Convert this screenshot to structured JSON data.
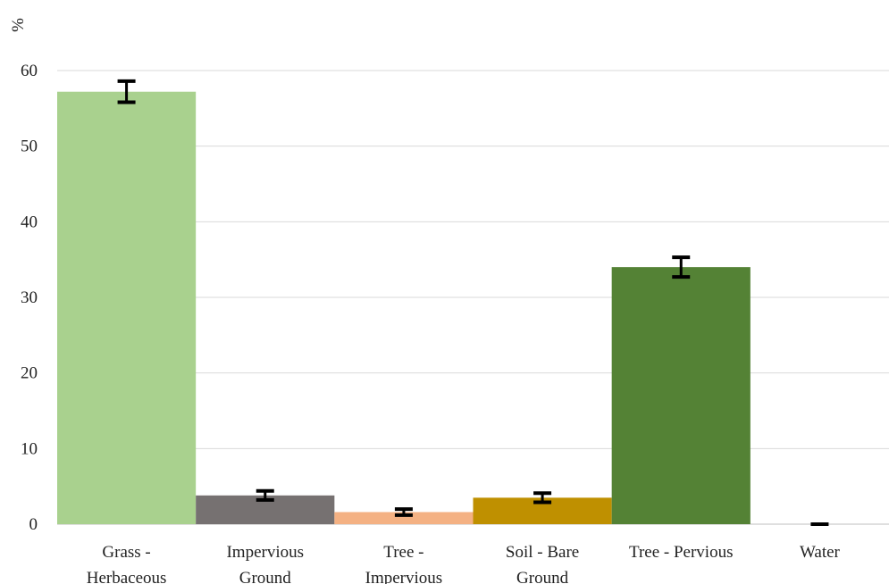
{
  "chart_data": {
    "type": "bar",
    "ylabel": "%",
    "ylim": [
      0,
      60
    ],
    "yticks": [
      0,
      10,
      20,
      30,
      40,
      50,
      60
    ],
    "grid": true,
    "categories": [
      [
        "Grass -",
        "Herbaceous"
      ],
      [
        "Impervious",
        "Ground"
      ],
      [
        "Tree -",
        "Impervious"
      ],
      [
        "Soil - Bare",
        "Ground"
      ],
      [
        "Tree - Pervious"
      ],
      [
        "Water"
      ]
    ],
    "values": [
      57.2,
      3.8,
      1.6,
      3.5,
      34.0,
      0.0
    ],
    "errors": [
      1.4,
      0.6,
      0.4,
      0.6,
      1.3,
      0.1
    ],
    "colors": [
      "#a9d18e",
      "#767171",
      "#f4b183",
      "#bf9000",
      "#548235",
      "#5b9bd5"
    ]
  }
}
